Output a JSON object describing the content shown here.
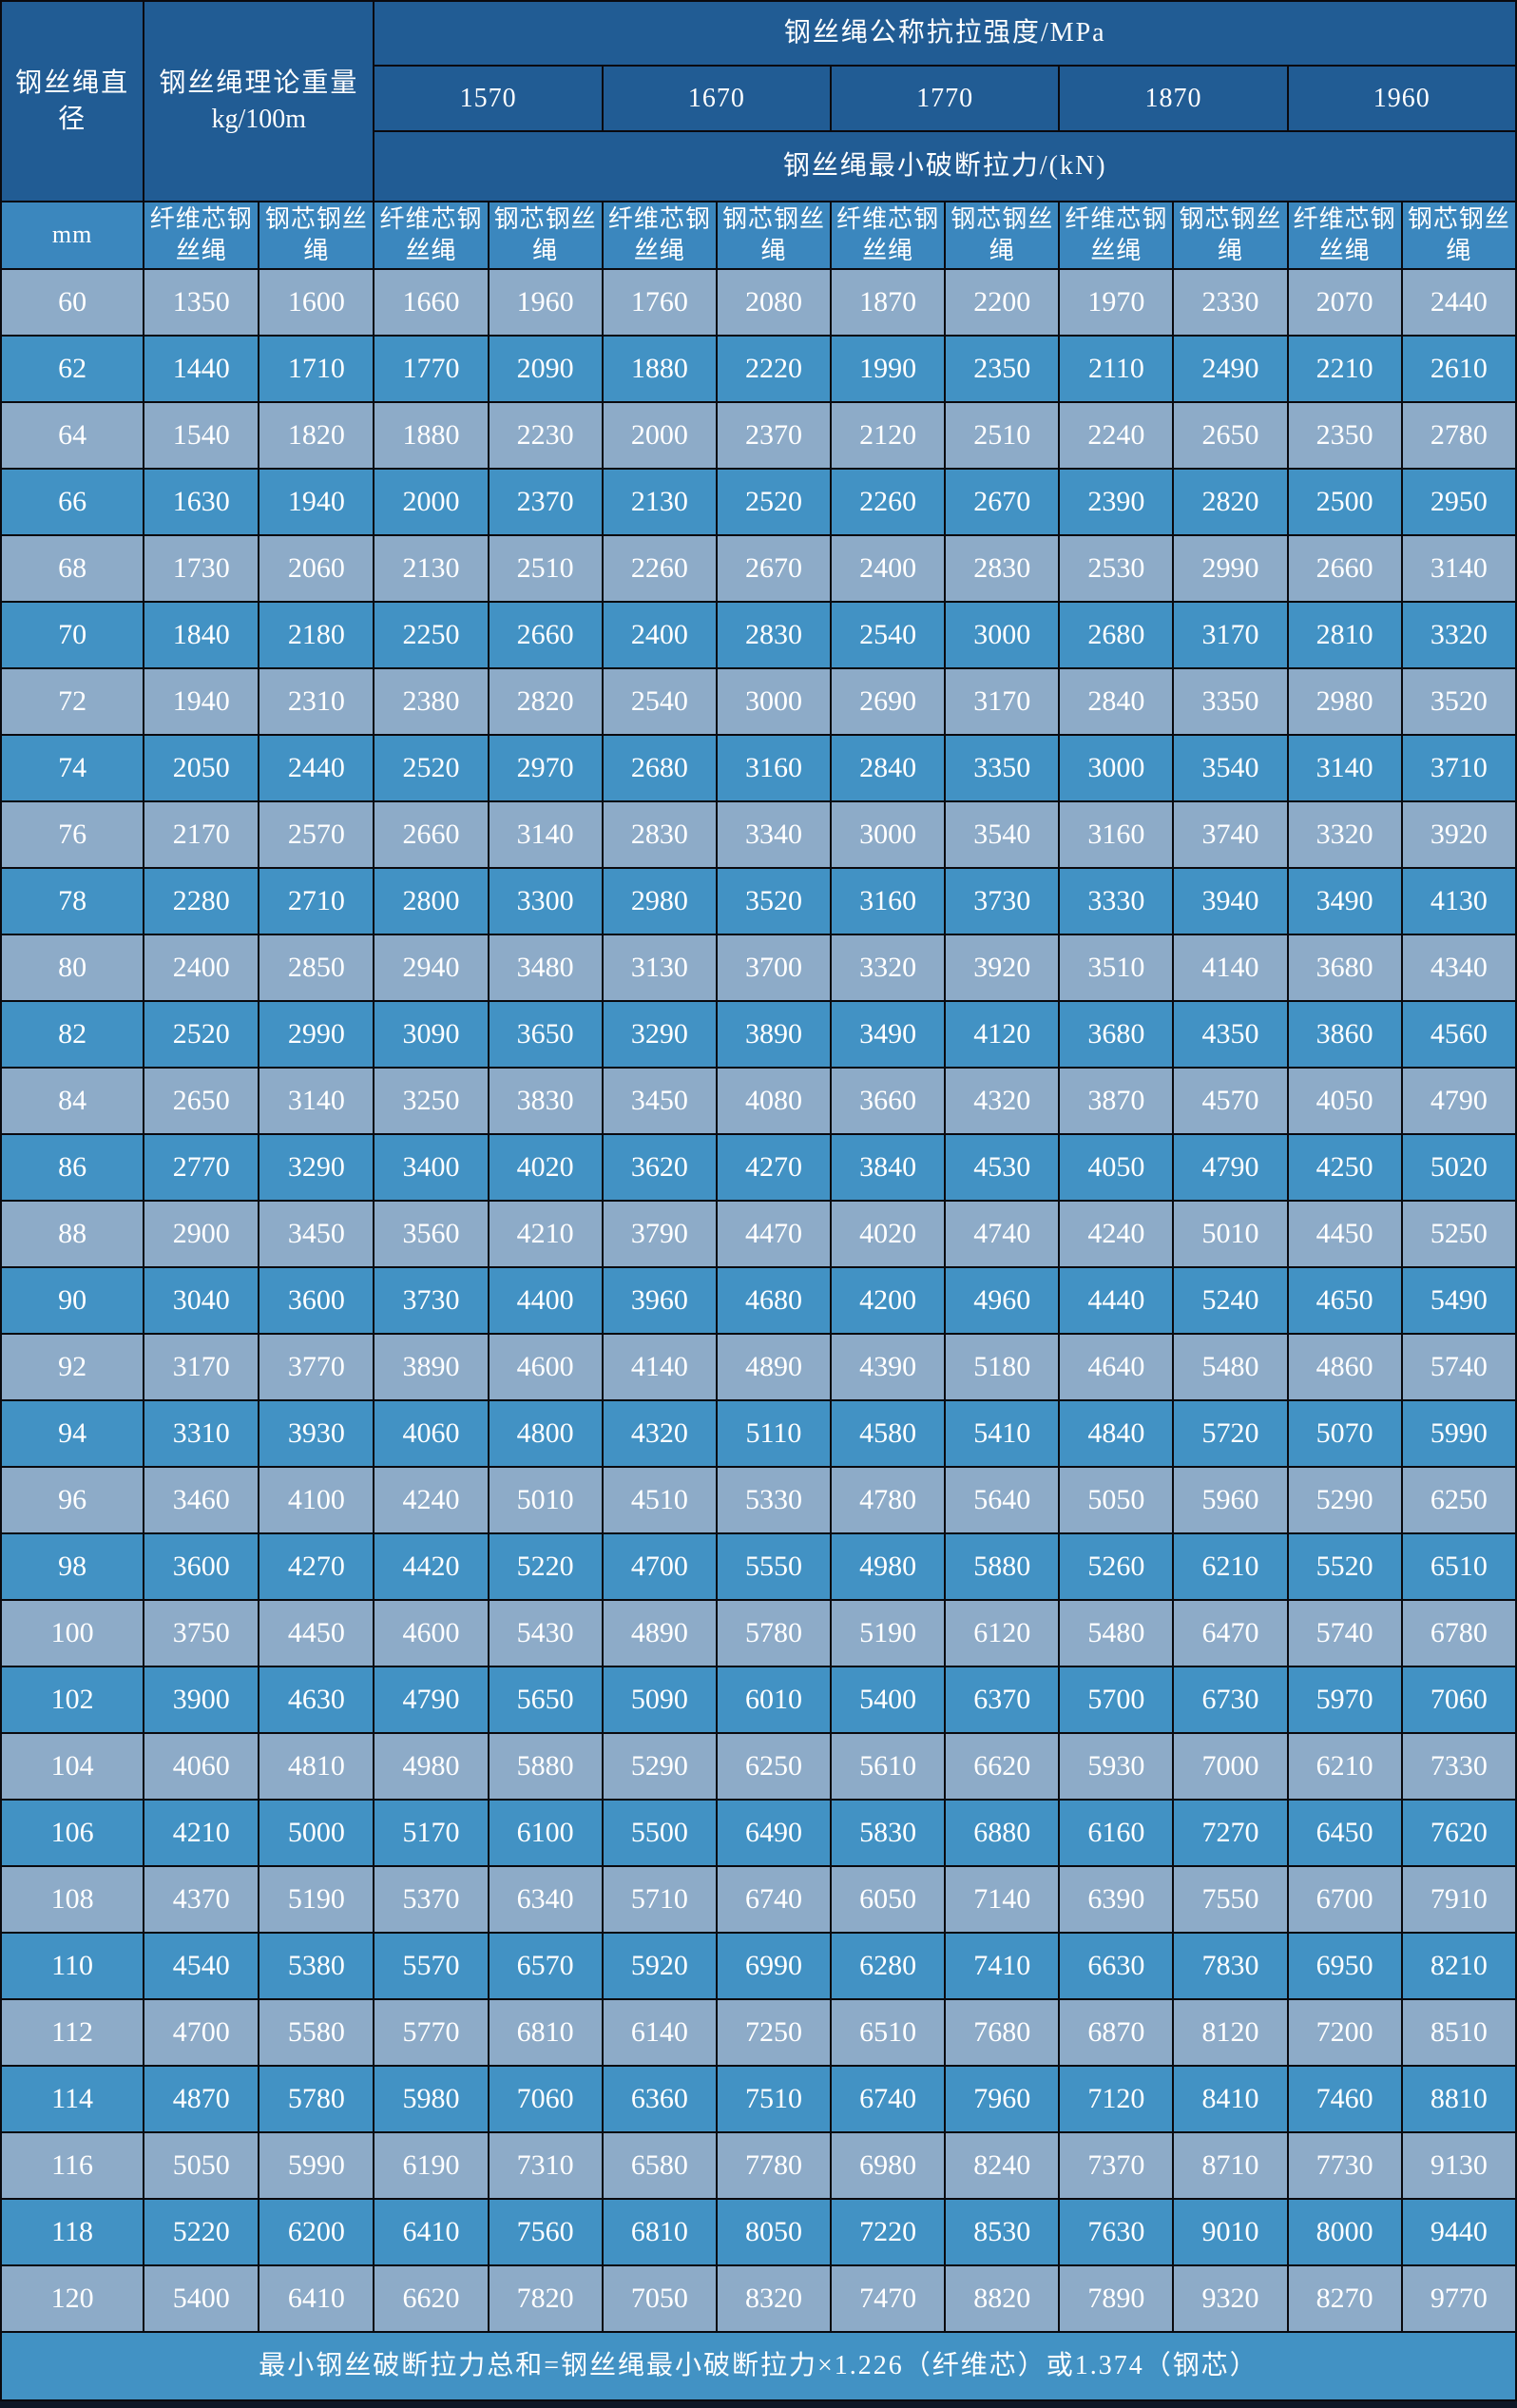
{
  "table": {
    "header": {
      "diameter_label": "钢丝绳直径",
      "diameter_unit": "mm",
      "weight_label_line1": "钢丝绳理论重量",
      "weight_label_line2": "kg/100m",
      "strength_label": "钢丝绳公称抗拉强度/MPa",
      "strength_values": [
        "1570",
        "1670",
        "1770",
        "1870",
        "1960"
      ],
      "breaking_force_label": "钢丝绳最小破断拉力/(kN)",
      "core_fiber_label": "纤维芯钢丝绳",
      "core_steel_label": "钢芯钢丝绳"
    },
    "rows": [
      [
        60,
        1350,
        1600,
        1660,
        1960,
        1760,
        2080,
        1870,
        2200,
        1970,
        2330,
        2070,
        2440
      ],
      [
        62,
        1440,
        1710,
        1770,
        2090,
        1880,
        2220,
        1990,
        2350,
        2110,
        2490,
        2210,
        2610
      ],
      [
        64,
        1540,
        1820,
        1880,
        2230,
        2000,
        2370,
        2120,
        2510,
        2240,
        2650,
        2350,
        2780
      ],
      [
        66,
        1630,
        1940,
        2000,
        2370,
        2130,
        2520,
        2260,
        2670,
        2390,
        2820,
        2500,
        2950
      ],
      [
        68,
        1730,
        2060,
        2130,
        2510,
        2260,
        2670,
        2400,
        2830,
        2530,
        2990,
        2660,
        3140
      ],
      [
        70,
        1840,
        2180,
        2250,
        2660,
        2400,
        2830,
        2540,
        3000,
        2680,
        3170,
        2810,
        3320
      ],
      [
        72,
        1940,
        2310,
        2380,
        2820,
        2540,
        3000,
        2690,
        3170,
        2840,
        3350,
        2980,
        3520
      ],
      [
        74,
        2050,
        2440,
        2520,
        2970,
        2680,
        3160,
        2840,
        3350,
        3000,
        3540,
        3140,
        3710
      ],
      [
        76,
        2170,
        2570,
        2660,
        3140,
        2830,
        3340,
        3000,
        3540,
        3160,
        3740,
        3320,
        3920
      ],
      [
        78,
        2280,
        2710,
        2800,
        3300,
        2980,
        3520,
        3160,
        3730,
        3330,
        3940,
        3490,
        4130
      ],
      [
        80,
        2400,
        2850,
        2940,
        3480,
        3130,
        3700,
        3320,
        3920,
        3510,
        4140,
        3680,
        4340
      ],
      [
        82,
        2520,
        2990,
        3090,
        3650,
        3290,
        3890,
        3490,
        4120,
        3680,
        4350,
        3860,
        4560
      ],
      [
        84,
        2650,
        3140,
        3250,
        3830,
        3450,
        4080,
        3660,
        4320,
        3870,
        4570,
        4050,
        4790
      ],
      [
        86,
        2770,
        3290,
        3400,
        4020,
        3620,
        4270,
        3840,
        4530,
        4050,
        4790,
        4250,
        5020
      ],
      [
        88,
        2900,
        3450,
        3560,
        4210,
        3790,
        4470,
        4020,
        4740,
        4240,
        5010,
        4450,
        5250
      ],
      [
        90,
        3040,
        3600,
        3730,
        4400,
        3960,
        4680,
        4200,
        4960,
        4440,
        5240,
        4650,
        5490
      ],
      [
        92,
        3170,
        3770,
        3890,
        4600,
        4140,
        4890,
        4390,
        5180,
        4640,
        5480,
        4860,
        5740
      ],
      [
        94,
        3310,
        3930,
        4060,
        4800,
        4320,
        5110,
        4580,
        5410,
        4840,
        5720,
        5070,
        5990
      ],
      [
        96,
        3460,
        4100,
        4240,
        5010,
        4510,
        5330,
        4780,
        5640,
        5050,
        5960,
        5290,
        6250
      ],
      [
        98,
        3600,
        4270,
        4420,
        5220,
        4700,
        5550,
        4980,
        5880,
        5260,
        6210,
        5520,
        6510
      ],
      [
        100,
        3750,
        4450,
        4600,
        5430,
        4890,
        5780,
        5190,
        6120,
        5480,
        6470,
        5740,
        6780
      ],
      [
        102,
        3900,
        4630,
        4790,
        5650,
        5090,
        6010,
        5400,
        6370,
        5700,
        6730,
        5970,
        7060
      ],
      [
        104,
        4060,
        4810,
        4980,
        5880,
        5290,
        6250,
        5610,
        6620,
        5930,
        7000,
        6210,
        7330
      ],
      [
        106,
        4210,
        5000,
        5170,
        6100,
        5500,
        6490,
        5830,
        6880,
        6160,
        7270,
        6450,
        7620
      ],
      [
        108,
        4370,
        5190,
        5370,
        6340,
        5710,
        6740,
        6050,
        7140,
        6390,
        7550,
        6700,
        7910
      ],
      [
        110,
        4540,
        5380,
        5570,
        6570,
        5920,
        6990,
        6280,
        7410,
        6630,
        7830,
        6950,
        8210
      ],
      [
        112,
        4700,
        5580,
        5770,
        6810,
        6140,
        7250,
        6510,
        7680,
        6870,
        8120,
        7200,
        8510
      ],
      [
        114,
        4870,
        5780,
        5980,
        7060,
        6360,
        7510,
        6740,
        7960,
        7120,
        8410,
        7460,
        8810
      ],
      [
        116,
        5050,
        5990,
        6190,
        7310,
        6580,
        7780,
        6980,
        8240,
        7370,
        8710,
        7730,
        9130
      ],
      [
        118,
        5220,
        6200,
        6410,
        7560,
        6810,
        8050,
        7220,
        8530,
        7630,
        9010,
        8000,
        9440
      ],
      [
        120,
        5400,
        6410,
        6620,
        7820,
        7050,
        8320,
        7470,
        8820,
        7890,
        9320,
        8270,
        9770
      ]
    ],
    "footer_note": "最小钢丝破断拉力总和=钢丝绳最小破断拉力×1.226（纤维芯）或1.374（钢芯）"
  },
  "colors": {
    "header-dark": "#215c94",
    "subheader": "#3b87be",
    "row-light": "#8dabc8",
    "row-dark": "#4292c4",
    "footer-bg": "#4292c4",
    "grid": "#0a0a0f",
    "text": "#ffffff",
    "bottom-strip": "#0e1726"
  }
}
